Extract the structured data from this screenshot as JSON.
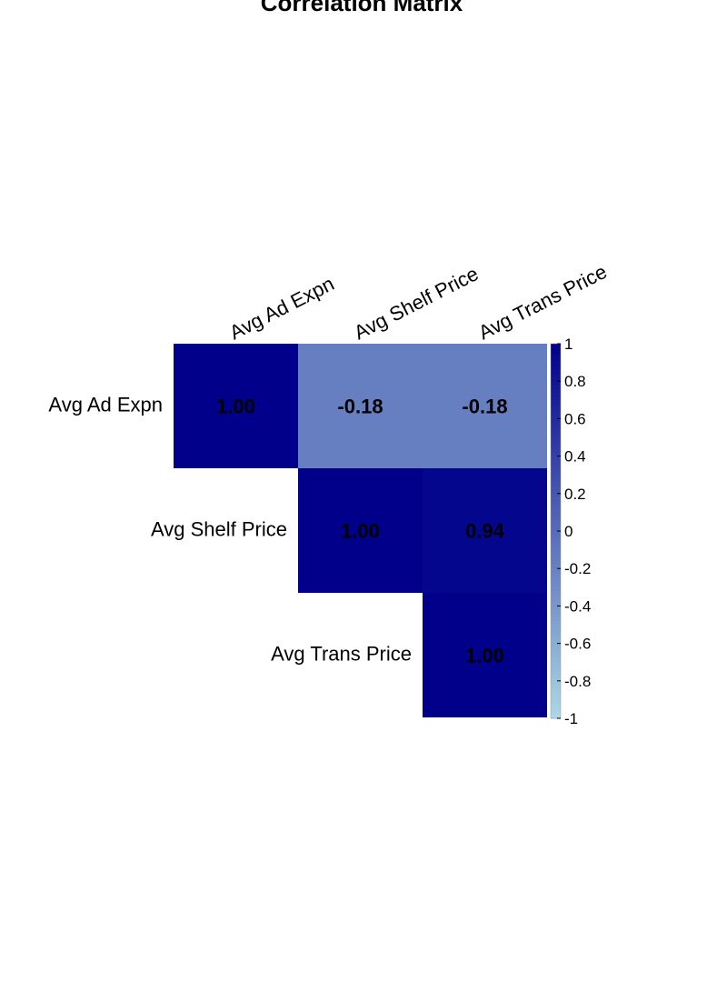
{
  "chart_data": {
    "type": "heatmap",
    "title": "Correlation Matrix",
    "variables": [
      "Avg Ad Expn",
      "Avg Shelf Price",
      "Avg Trans Price"
    ],
    "matrix": [
      [
        1.0,
        -0.18,
        -0.18
      ],
      [
        null,
        1.0,
        0.94
      ],
      [
        null,
        null,
        1.0
      ]
    ],
    "cell_labels": [
      [
        "1.00",
        "-0.18",
        "-0.18"
      ],
      [
        "",
        "1.00",
        "0.94"
      ],
      [
        "",
        "",
        "1.00"
      ]
    ],
    "colorbar": {
      "range": [
        -1,
        1
      ],
      "ticks": [
        "1",
        "0.8",
        "0.6",
        "0.4",
        "0.2",
        "0",
        "-0.2",
        "-0.4",
        "-0.6",
        "-0.8",
        "-1"
      ],
      "colors": [
        "#add8e6",
        "#00008b"
      ]
    },
    "layout": "upper-triangle"
  }
}
